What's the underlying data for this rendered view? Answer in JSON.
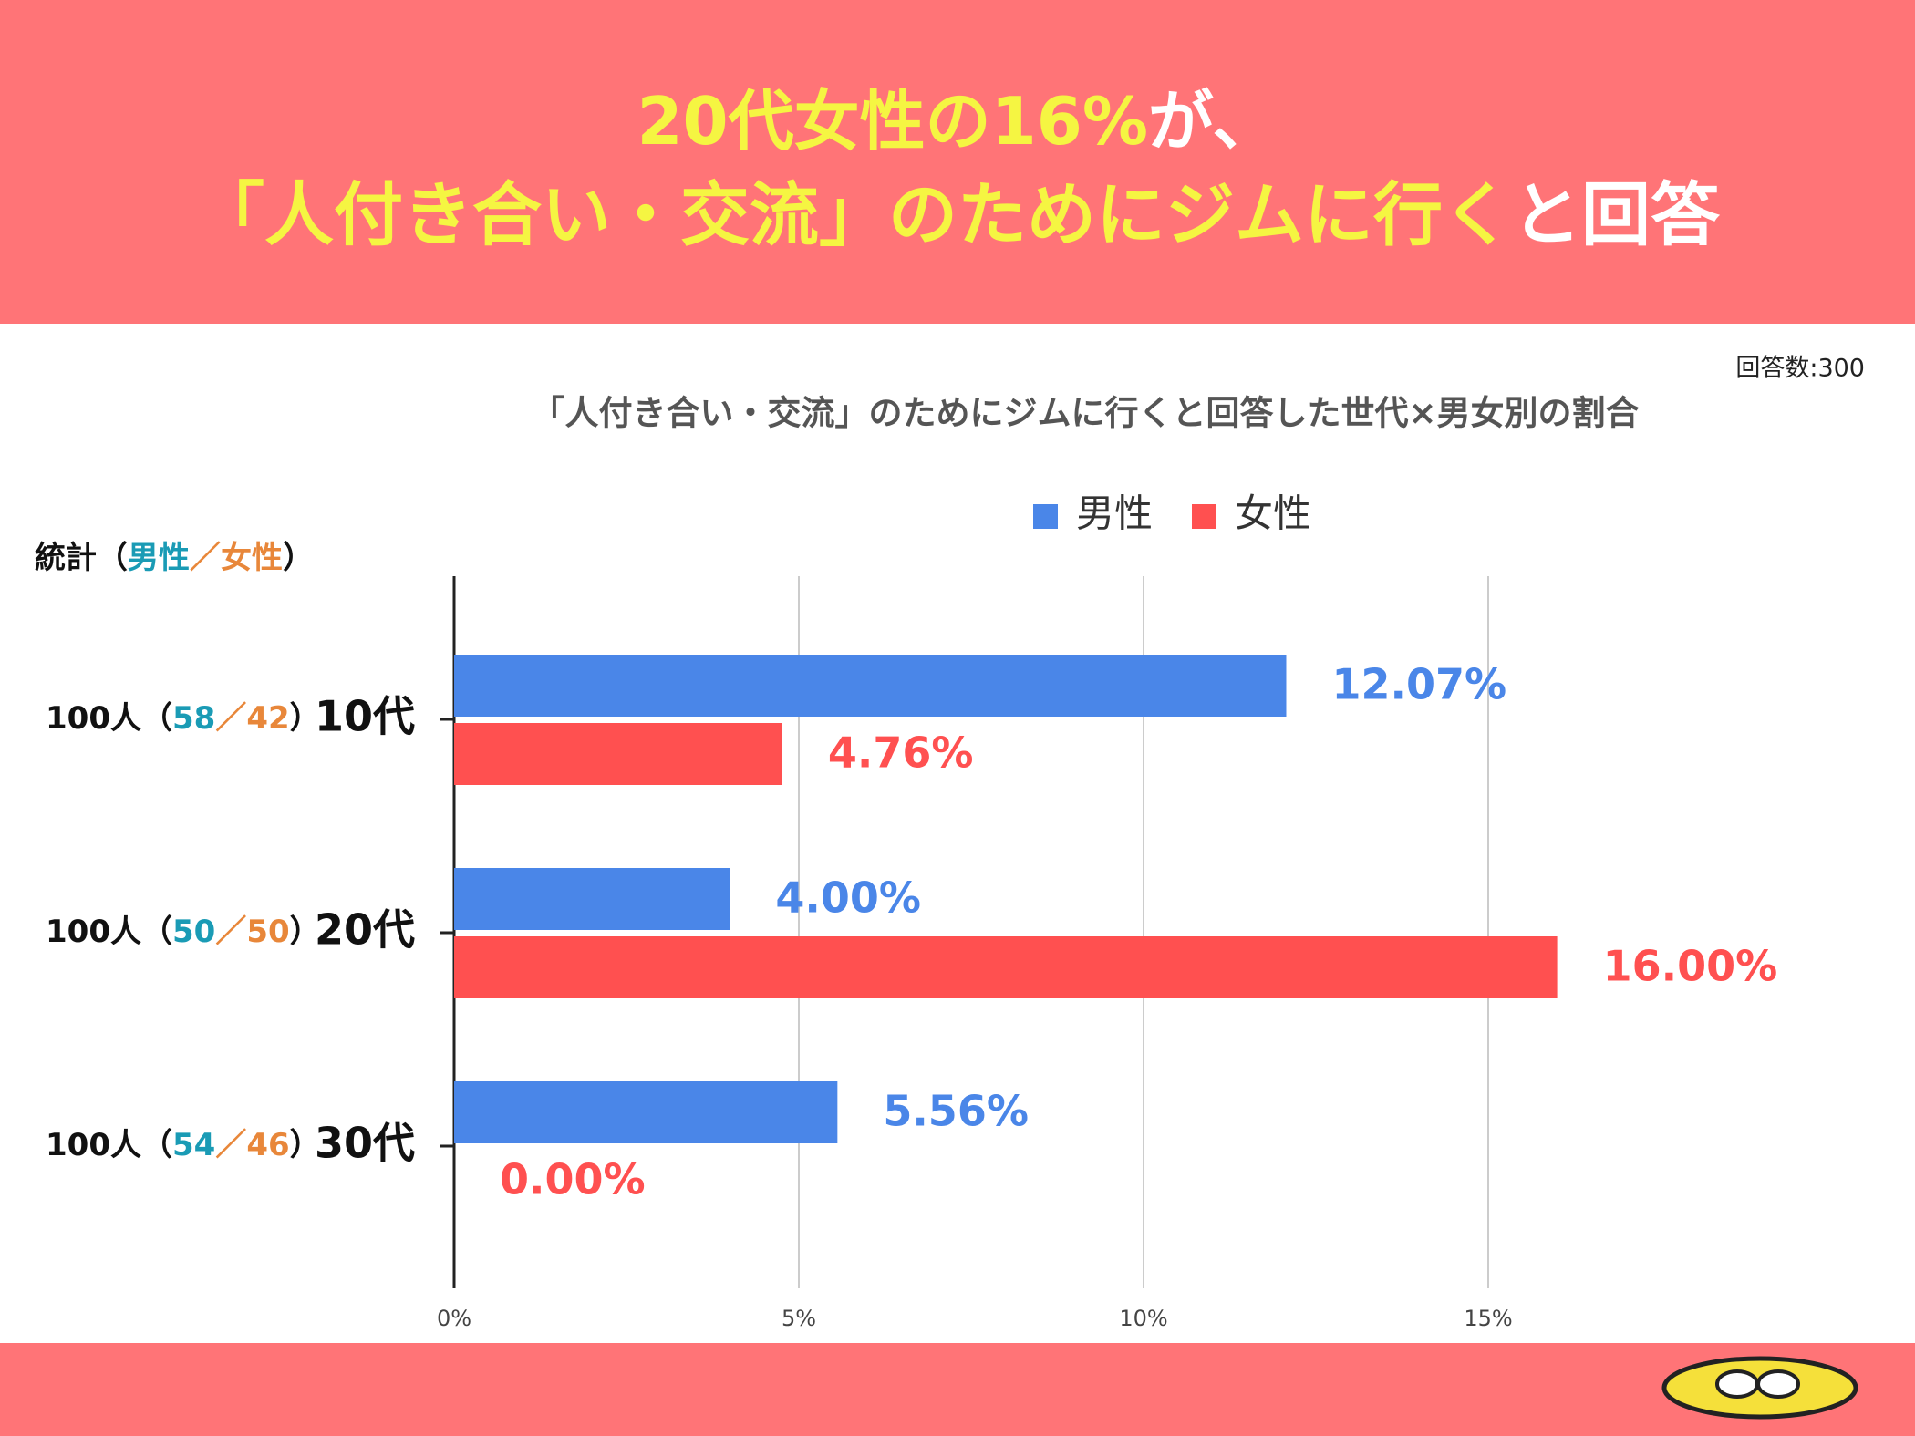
{
  "chart_data": {
    "type": "bar",
    "orientation": "horizontal",
    "headline": [
      [
        {
          "text": "20代女性の16%",
          "color": "#f5f542"
        },
        {
          "text": "が、",
          "color": "#ffffff"
        }
      ],
      [
        {
          "text": "「人付き合い・交流」のためにジムに行く",
          "color": "#f5f542"
        },
        {
          "text": "と回答",
          "color": "#ffffff"
        }
      ]
    ],
    "respondents": "回答数:300",
    "title": "「人付き合い・交流」のためにジムに行くと回答した世代×男女別の割合",
    "categories": [
      "10代",
      "20代",
      "30代"
    ],
    "series": [
      {
        "name": "男性",
        "color": "#4a86e8",
        "values": [
          12.07,
          4.0,
          5.56
        ],
        "value_labels": [
          "12.07%",
          "4.00%",
          "5.56%"
        ]
      },
      {
        "name": "女性",
        "color": "#ff5050",
        "values": [
          4.76,
          16.0,
          0.0
        ],
        "value_labels": [
          "4.76%",
          "16.00%",
          "0.00%"
        ]
      }
    ],
    "xlim": [
      0,
      20
    ],
    "xticks": [
      {
        "value": 0,
        "label": "0%"
      },
      {
        "value": 5,
        "label": "5%"
      },
      {
        "value": 10,
        "label": "10%"
      },
      {
        "value": 15,
        "label": "15%"
      }
    ],
    "grid": true,
    "legend": "top",
    "stats": {
      "header": "統計",
      "male_label": "男性",
      "female_label": "女性",
      "open": "（",
      "sep": "／",
      "close": "）",
      "male_color": "#1a9bb5",
      "female_color": "#e8873a",
      "rows": [
        {
          "total": "100人",
          "male": 58,
          "female": 42
        },
        {
          "total": "100人",
          "male": 50,
          "female": 50
        },
        {
          "total": "100人",
          "male": 54,
          "female": 46
        }
      ]
    }
  }
}
